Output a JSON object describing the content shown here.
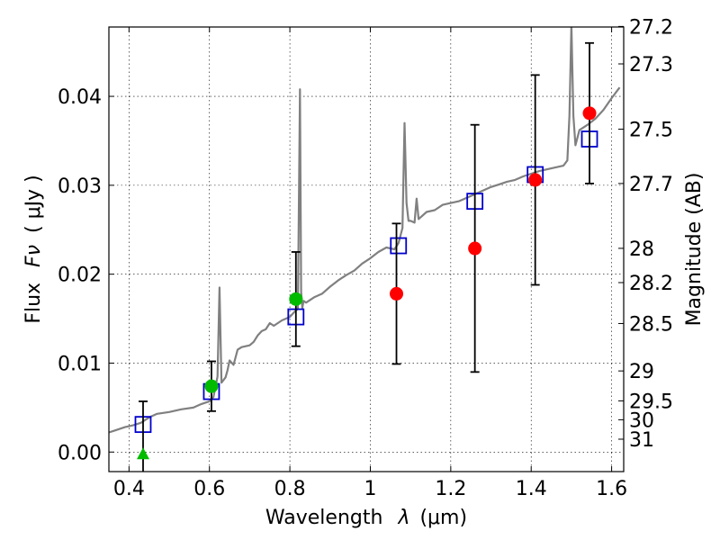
{
  "chart_data": {
    "type": "scatter",
    "xlabel_text": "Wavelength",
    "xlabel_symbol": "λ",
    "xlabel_unit": "(μm)",
    "ylabel_text": "Flux",
    "ylabel_symbol": "Fν",
    "ylabel_unit": "( μJy )",
    "y2label": "Magnitude (AB)",
    "xlim": [
      0.35,
      1.63
    ],
    "ylim": [
      -0.0022,
      0.0478
    ],
    "grid": true,
    "x_ticks": [
      {
        "value": 0.4,
        "label": "0.4"
      },
      {
        "value": 0.6,
        "label": "0.6"
      },
      {
        "value": 0.8,
        "label": "0.8"
      },
      {
        "value": 1.0,
        "label": "1"
      },
      {
        "value": 1.2,
        "label": "1.2"
      },
      {
        "value": 1.4,
        "label": "1.4"
      },
      {
        "value": 1.6,
        "label": "1.6"
      }
    ],
    "y_ticks": [
      {
        "value": 0.0,
        "label": "0.00"
      },
      {
        "value": 0.01,
        "label": "0.01"
      },
      {
        "value": 0.02,
        "label": "0.02"
      },
      {
        "value": 0.03,
        "label": "0.03"
      },
      {
        "value": 0.04,
        "label": "0.04"
      }
    ],
    "y2_ticks": [
      {
        "value": 27.2,
        "label": "27.2"
      },
      {
        "value": 27.3,
        "label": "27.3"
      },
      {
        "value": 27.5,
        "label": "27.5"
      },
      {
        "value": 27.7,
        "label": "27.7"
      },
      {
        "value": 28.0,
        "label": "28"
      },
      {
        "value": 28.2,
        "label": "28.2"
      },
      {
        "value": 28.5,
        "label": "28.5"
      },
      {
        "value": 29.0,
        "label": "29"
      },
      {
        "value": 29.5,
        "label": "29.5"
      },
      {
        "value": 30.0,
        "label": "30"
      },
      {
        "value": 31.0,
        "label": "31"
      }
    ],
    "series": [
      {
        "kind": "line",
        "color": "#808080",
        "x": [
          0.35,
          0.37,
          0.39,
          0.41,
          0.43,
          0.44,
          0.455,
          0.47,
          0.5,
          0.53,
          0.56,
          0.58,
          0.6,
          0.61,
          0.62,
          0.625,
          0.63,
          0.64,
          0.645,
          0.65,
          0.66,
          0.67,
          0.68,
          0.7,
          0.71,
          0.72,
          0.73,
          0.74,
          0.75,
          0.76,
          0.78,
          0.8,
          0.81,
          0.82,
          0.825,
          0.828,
          0.831,
          0.834,
          0.84,
          0.86,
          0.88,
          0.9,
          0.92,
          0.94,
          0.96,
          0.98,
          1.0,
          1.02,
          1.04,
          1.06,
          1.07,
          1.08,
          1.085,
          1.09,
          1.095,
          1.1,
          1.11,
          1.115,
          1.12,
          1.14,
          1.16,
          1.18,
          1.2,
          1.22,
          1.24,
          1.26,
          1.28,
          1.3,
          1.32,
          1.34,
          1.36,
          1.38,
          1.4,
          1.42,
          1.44,
          1.46,
          1.48,
          1.49,
          1.495,
          1.5,
          1.505,
          1.51,
          1.52,
          1.54,
          1.56,
          1.58,
          1.6,
          1.62
        ],
        "y": [
          0.0022,
          0.0025,
          0.0028,
          0.003,
          0.0033,
          0.0036,
          0.004,
          0.0043,
          0.0045,
          0.0048,
          0.005,
          0.0054,
          0.0057,
          0.0062,
          0.0085,
          0.0185,
          0.0078,
          0.0084,
          0.0092,
          0.0103,
          0.0098,
          0.0115,
          0.0118,
          0.012,
          0.0124,
          0.0131,
          0.0136,
          0.0138,
          0.0145,
          0.0142,
          0.0148,
          0.0152,
          0.0157,
          0.0161,
          0.0408,
          0.018,
          0.0162,
          0.017,
          0.0168,
          0.0174,
          0.0178,
          0.0186,
          0.0193,
          0.0199,
          0.0204,
          0.0212,
          0.0218,
          0.0225,
          0.023,
          0.0228,
          0.0235,
          0.0252,
          0.037,
          0.028,
          0.026,
          0.026,
          0.0258,
          0.0285,
          0.0262,
          0.027,
          0.0272,
          0.0278,
          0.028,
          0.0282,
          0.0286,
          0.029,
          0.0294,
          0.0298,
          0.0301,
          0.0304,
          0.0306,
          0.031,
          0.0313,
          0.0316,
          0.0318,
          0.032,
          0.0322,
          0.0328,
          0.0378,
          0.048,
          0.0378,
          0.0345,
          0.0362,
          0.0368,
          0.0375,
          0.0385,
          0.0398,
          0.041
        ]
      },
      {
        "kind": "squares",
        "color": "#0000cc",
        "x": [
          0.435,
          0.605,
          0.815,
          1.07,
          1.26,
          1.41,
          1.545
        ],
        "y": [
          0.0031,
          0.0068,
          0.0152,
          0.0232,
          0.0282,
          0.0312,
          0.0352
        ]
      },
      {
        "kind": "circles",
        "color": "#ff0000",
        "x": [
          1.065,
          1.26,
          1.41,
          1.545
        ],
        "y": [
          0.0178,
          0.0229,
          0.0306,
          0.0381
        ],
        "yerr": [
          0.0079,
          0.0139,
          0.0118,
          0.0079
        ]
      },
      {
        "kind": "circles",
        "color": "#00bb00",
        "x": [
          0.605,
          0.815
        ],
        "y": [
          0.0074,
          0.0172
        ],
        "yerr": [
          0.0028,
          0.0053
        ]
      },
      {
        "kind": "triangle",
        "color": "#00bb00",
        "x": [
          0.435
        ],
        "y": [
          -0.0002
        ],
        "yerr": [
          0.0059
        ]
      }
    ]
  }
}
